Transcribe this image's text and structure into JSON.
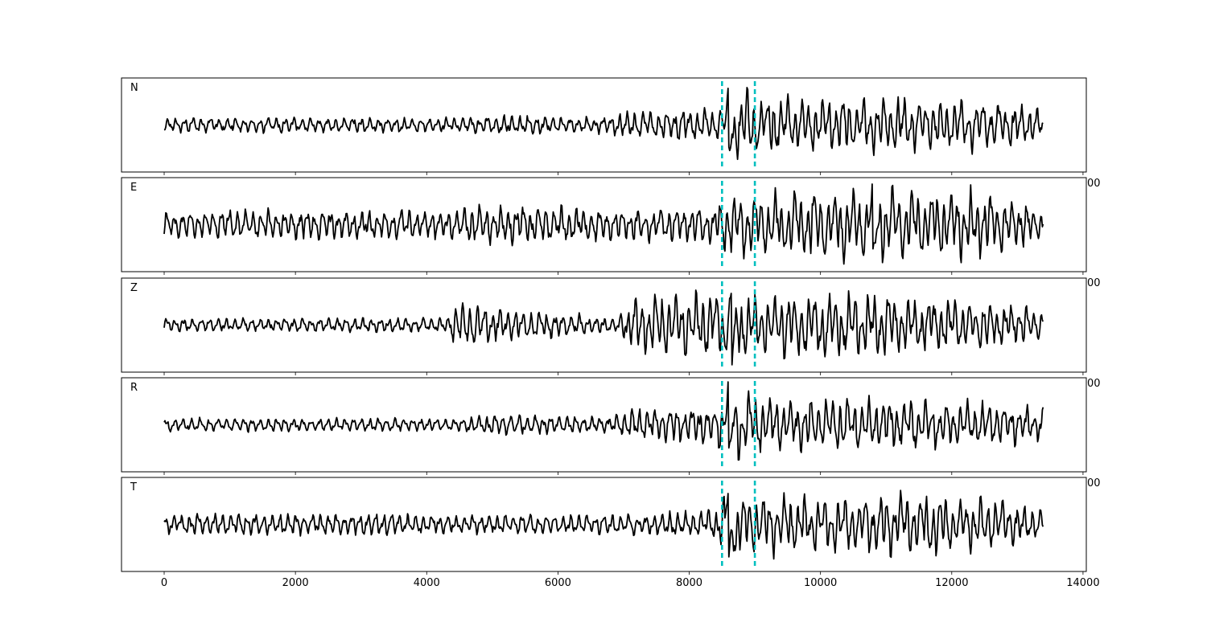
{
  "chart_data": [
    {
      "type": "line",
      "label": "N",
      "xlim": [
        -650,
        14050
      ],
      "x_ticks": [
        0,
        2000,
        4000,
        6000,
        8000,
        10000,
        12000,
        14000
      ],
      "x_tick_labels": [
        "",
        "",
        "",
        "",
        "",
        "",
        "",
        "00"
      ],
      "series_color": "#000000",
      "trace": {
        "n_samples": 13400,
        "activity_envelope": [
          [
            0,
            0.2
          ],
          [
            4500,
            0.2
          ],
          [
            5200,
            0.28
          ],
          [
            6800,
            0.22
          ],
          [
            7000,
            0.38
          ],
          [
            8400,
            0.45
          ],
          [
            8500,
            0.55
          ],
          [
            8700,
            1.0
          ],
          [
            9100,
            0.75
          ],
          [
            10500,
            0.72
          ],
          [
            11500,
            0.7
          ],
          [
            12500,
            0.62
          ],
          [
            13400,
            0.45
          ]
        ],
        "peak_amplitude_sample": 8600
      },
      "markers": [
        8500,
        9000
      ],
      "marker_color": "#00bfbf"
    },
    {
      "type": "line",
      "label": "E",
      "xlim": [
        -650,
        14050
      ],
      "x_ticks": [
        0,
        2000,
        4000,
        6000,
        8000,
        10000,
        12000,
        14000
      ],
      "x_tick_labels": [
        "",
        "",
        "",
        "",
        "",
        "",
        "",
        "00"
      ],
      "series_color": "#000000",
      "trace": {
        "n_samples": 13400,
        "activity_envelope": [
          [
            0,
            0.4
          ],
          [
            3500,
            0.42
          ],
          [
            4500,
            0.38
          ],
          [
            4700,
            0.55
          ],
          [
            7000,
            0.45
          ],
          [
            8400,
            0.5
          ],
          [
            8600,
            0.85
          ],
          [
            9100,
            0.8
          ],
          [
            10000,
            0.9
          ],
          [
            11000,
            0.95
          ],
          [
            12500,
            0.8
          ],
          [
            13400,
            0.45
          ]
        ],
        "peak_amplitude_sample": 10800
      },
      "markers": [
        8500,
        9000
      ],
      "marker_color": "#00bfbf"
    },
    {
      "type": "line",
      "label": "Z",
      "xlim": [
        -650,
        14050
      ],
      "x_ticks": [
        0,
        2000,
        4000,
        6000,
        8000,
        10000,
        12000,
        14000
      ],
      "x_tick_labels": [
        "",
        "",
        "",
        "",
        "",
        "",
        "",
        "00"
      ],
      "series_color": "#000000",
      "trace": {
        "n_samples": 13400,
        "activity_envelope": [
          [
            0,
            0.18
          ],
          [
            4300,
            0.2
          ],
          [
            4500,
            0.65
          ],
          [
            5200,
            0.45
          ],
          [
            6900,
            0.2
          ],
          [
            7200,
            0.8
          ],
          [
            8400,
            0.85
          ],
          [
            8600,
            1.0
          ],
          [
            9100,
            0.8
          ],
          [
            10500,
            0.85
          ],
          [
            12000,
            0.75
          ],
          [
            13400,
            0.4
          ]
        ],
        "peak_amplitude_sample": 8650
      },
      "markers": [
        8500,
        9000
      ],
      "marker_color": "#00bfbf"
    },
    {
      "type": "line",
      "label": "R",
      "xlim": [
        -650,
        14050
      ],
      "x_ticks": [
        0,
        2000,
        4000,
        6000,
        8000,
        10000,
        12000,
        14000
      ],
      "x_tick_labels": [
        "",
        "",
        "",
        "",
        "",
        "",
        "",
        "00"
      ],
      "series_color": "#000000",
      "trace": {
        "n_samples": 13400,
        "activity_envelope": [
          [
            0,
            0.18
          ],
          [
            4500,
            0.18
          ],
          [
            5200,
            0.3
          ],
          [
            6800,
            0.2
          ],
          [
            7000,
            0.42
          ],
          [
            8400,
            0.5
          ],
          [
            8600,
            1.0
          ],
          [
            9100,
            0.7
          ],
          [
            10500,
            0.7
          ],
          [
            12000,
            0.65
          ],
          [
            13400,
            0.45
          ]
        ],
        "peak_amplitude_sample": 8600
      },
      "markers": [
        8500,
        9000
      ],
      "marker_color": "#00bfbf"
    },
    {
      "type": "line",
      "label": "T",
      "xlim": [
        -650,
        14050
      ],
      "x_ticks": [
        0,
        2000,
        4000,
        6000,
        8000,
        10000,
        12000,
        14000
      ],
      "x_tick_labels": [
        "0",
        "2000",
        "4000",
        "6000",
        "8000",
        "10000",
        "12000",
        "14000"
      ],
      "series_color": "#000000",
      "trace": {
        "n_samples": 13400,
        "activity_envelope": [
          [
            0,
            0.28
          ],
          [
            3500,
            0.32
          ],
          [
            4000,
            0.25
          ],
          [
            7000,
            0.28
          ],
          [
            8400,
            0.4
          ],
          [
            8600,
            0.95
          ],
          [
            9100,
            0.75
          ],
          [
            10500,
            0.7
          ],
          [
            11500,
            0.85
          ],
          [
            12500,
            0.7
          ],
          [
            13400,
            0.4
          ]
        ],
        "peak_amplitude_sample": 8600
      },
      "markers": [
        8500,
        9000
      ],
      "marker_color": "#00bfbf"
    }
  ]
}
